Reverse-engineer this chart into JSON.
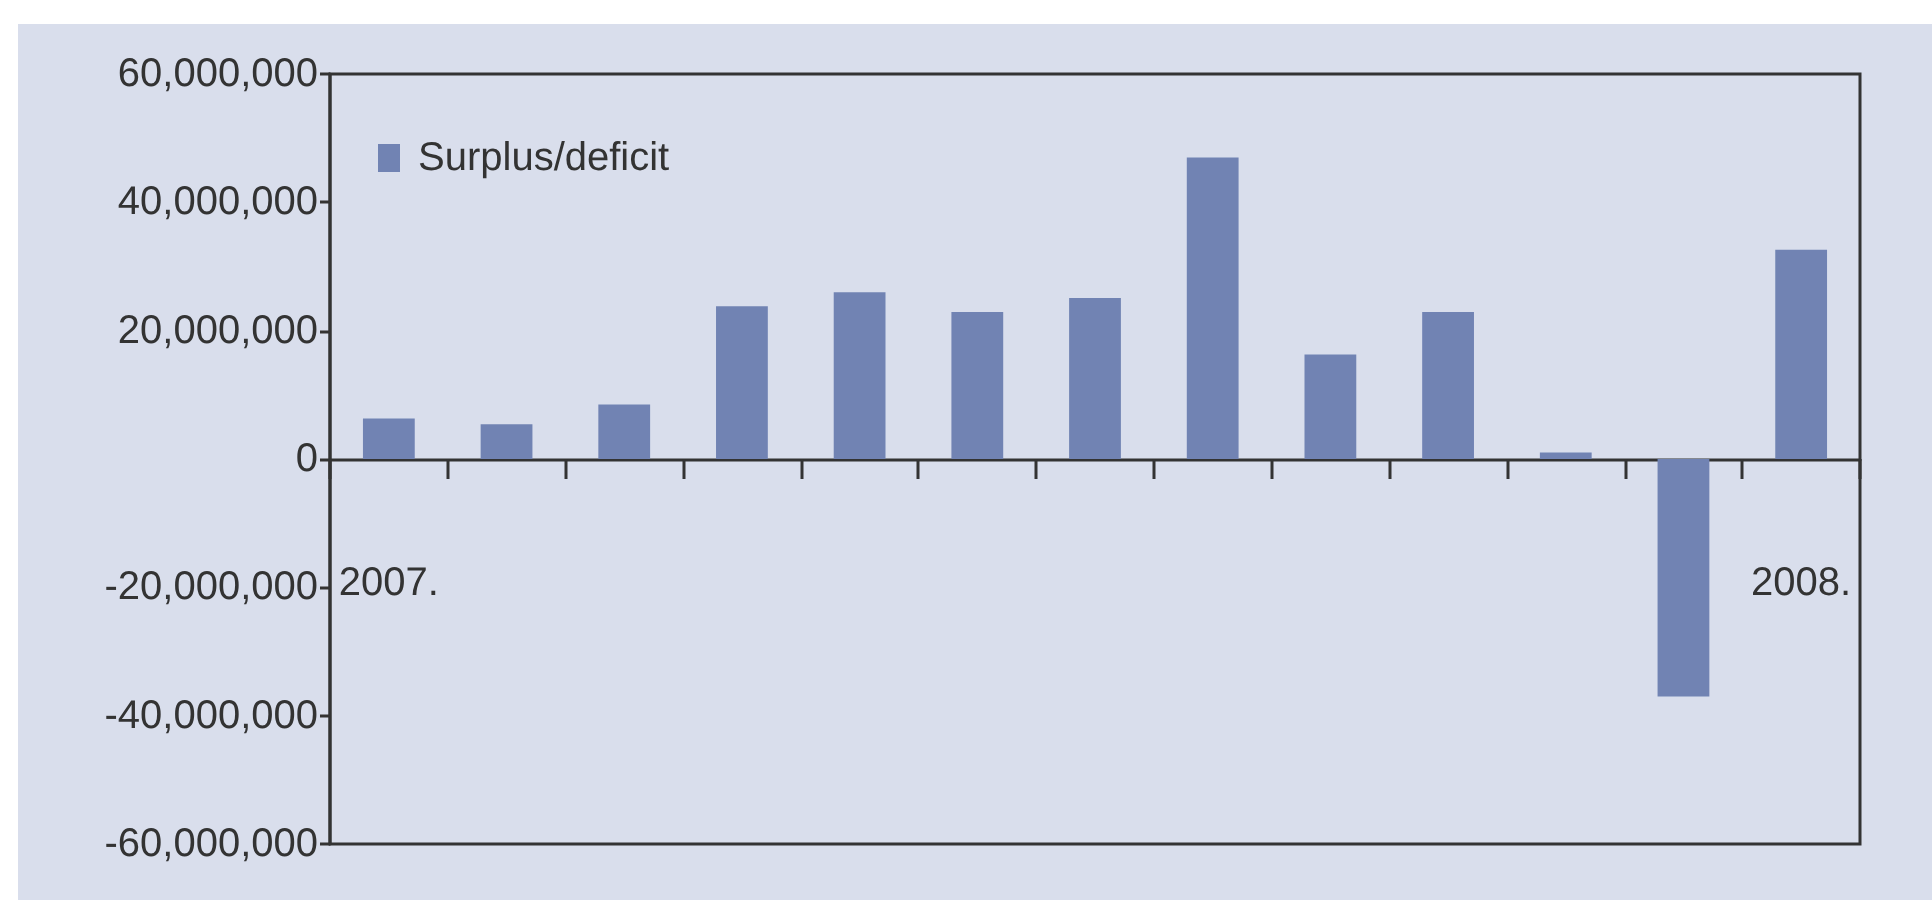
{
  "chart_data": {
    "type": "bar",
    "categories": [
      "2007.",
      null,
      null,
      null,
      null,
      null,
      null,
      null,
      null,
      null,
      null,
      null,
      "2008."
    ],
    "series": [
      {
        "name": "Surplus/deficit",
        "color": "#7183b3",
        "values": [
          6300000,
          5400000,
          8500000,
          23800000,
          26000000,
          22900000,
          25100000,
          47000000,
          16300000,
          22900000,
          1000000,
          -37000000,
          32600000
        ]
      }
    ],
    "ylim": [
      -60000000,
      60000000
    ],
    "yticks": [
      {
        "value": -60000000,
        "label": "-60,000,000"
      },
      {
        "value": -40000000,
        "label": "-40,000,000"
      },
      {
        "value": -20000000,
        "label": "-20,000,000"
      },
      {
        "value": 0,
        "label": "0"
      },
      {
        "value": 20000000,
        "label": "20,000,000"
      },
      {
        "value": 40000000,
        "label": "40,000,000"
      },
      {
        "value": 60000000,
        "label": "60,000,000"
      }
    ],
    "legend": "top left"
  }
}
